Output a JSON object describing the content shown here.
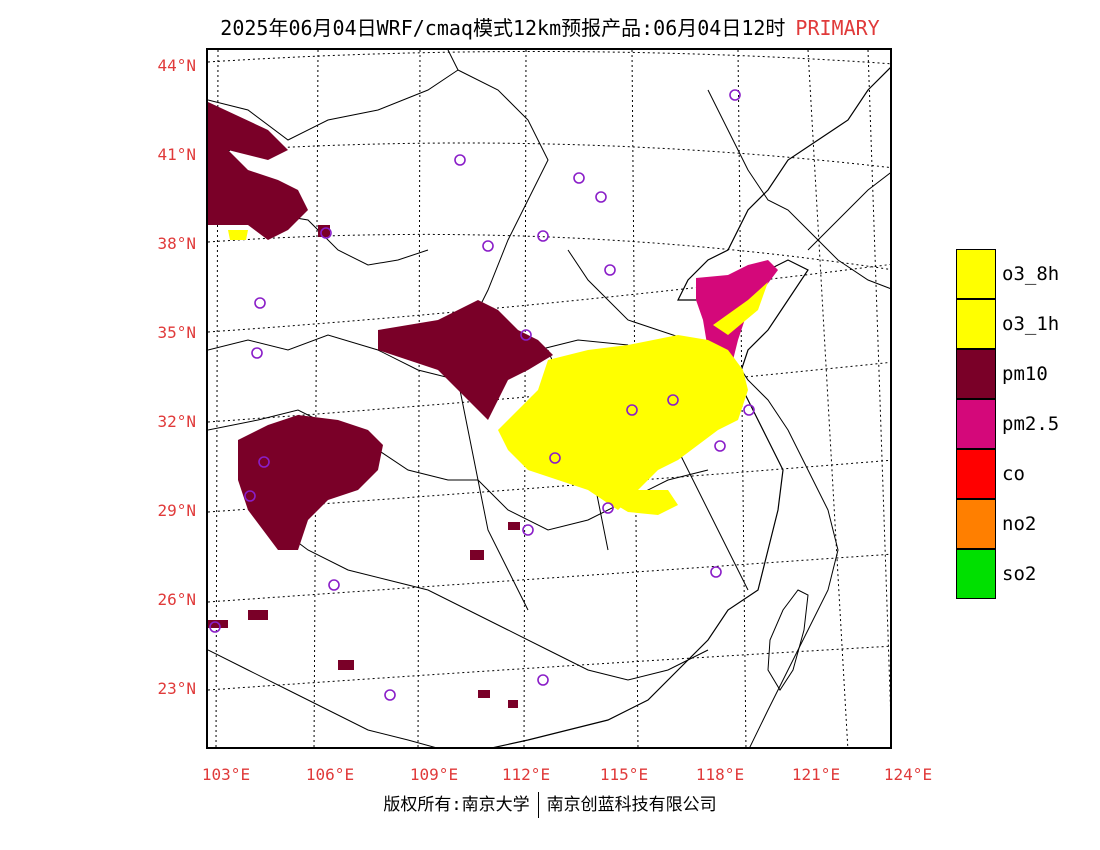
{
  "title": {
    "text": "2025年06月04日WRF/cmaq模式12km预报产品:06月04日12时",
    "tag": "PRIMARY"
  },
  "axes": {
    "lat_labels": [
      "44°N",
      "41°N",
      "38°N",
      "35°N",
      "32°N",
      "29°N",
      "26°N",
      "23°N"
    ],
    "lon_labels": [
      "103°E",
      "106°E",
      "109°E",
      "112°E",
      "115°E",
      "118°E",
      "121°E",
      "124°E"
    ]
  },
  "legend": [
    {
      "label": "o3_8h",
      "color": "#ffff00"
    },
    {
      "label": "o3_1h",
      "color": "#ffff00"
    },
    {
      "label": "pm10",
      "color": "#7a0028"
    },
    {
      "label": "pm2.5",
      "color": "#d4087a"
    },
    {
      "label": "co",
      "color": "#ff0000"
    },
    {
      "label": "no2",
      "color": "#ff7f00"
    },
    {
      "label": "so2",
      "color": "#00e000"
    }
  ],
  "footer": {
    "left": "版权所有:南京大学",
    "right": "南京创蓝科技有限公司"
  },
  "colors": {
    "pm10": "#7a0028",
    "pm25": "#d4087a",
    "o3": "#ffff00",
    "station": "#8a1ec8",
    "label": "#e03a3a"
  }
}
